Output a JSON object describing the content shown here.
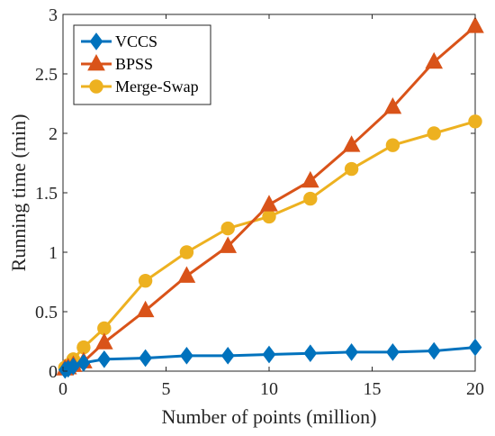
{
  "chart_data": {
    "type": "line",
    "xlabel": "Number of points (million)",
    "ylabel": "Running time (min)",
    "xlim": [
      0,
      20
    ],
    "ylim": [
      0,
      3
    ],
    "xticks": [
      0,
      5,
      10,
      15,
      20
    ],
    "yticks": [
      0,
      0.5,
      1,
      1.5,
      2,
      2.5,
      3
    ],
    "xtick_labels": [
      "0",
      "5",
      "10",
      "15",
      "20"
    ],
    "ytick_labels": [
      "0",
      "0.5",
      "1",
      "1.5",
      "2",
      "2.5",
      "3"
    ],
    "grid": false,
    "legend_position": "top-left",
    "series": [
      {
        "name": "VCCS",
        "color": "#0072BD",
        "marker": "diamond",
        "x": [
          0.1,
          0.25,
          0.5,
          1,
          2,
          4,
          6,
          8,
          10,
          12,
          14,
          16,
          18,
          20
        ],
        "y": [
          0.01,
          0.02,
          0.04,
          0.07,
          0.1,
          0.11,
          0.13,
          0.13,
          0.14,
          0.15,
          0.16,
          0.16,
          0.17,
          0.2
        ]
      },
      {
        "name": "BPSS",
        "color": "#D95319",
        "marker": "triangle",
        "x": [
          0.1,
          0.25,
          0.5,
          1,
          2,
          4,
          6,
          8,
          10,
          12,
          14,
          16,
          18,
          20
        ],
        "y": [
          0.02,
          0.03,
          0.05,
          0.08,
          0.24,
          0.51,
          0.8,
          1.05,
          1.4,
          1.6,
          1.9,
          2.22,
          2.6,
          2.9
        ]
      },
      {
        "name": "Merge-Swap",
        "color": "#EDB120",
        "marker": "circle",
        "x": [
          0.1,
          0.25,
          0.5,
          1,
          2,
          4,
          6,
          8,
          10,
          12,
          14,
          16,
          18,
          20
        ],
        "y": [
          0.03,
          0.05,
          0.1,
          0.2,
          0.36,
          0.76,
          1.0,
          1.2,
          1.3,
          1.45,
          1.7,
          1.9,
          2.0,
          2.1
        ]
      }
    ]
  }
}
